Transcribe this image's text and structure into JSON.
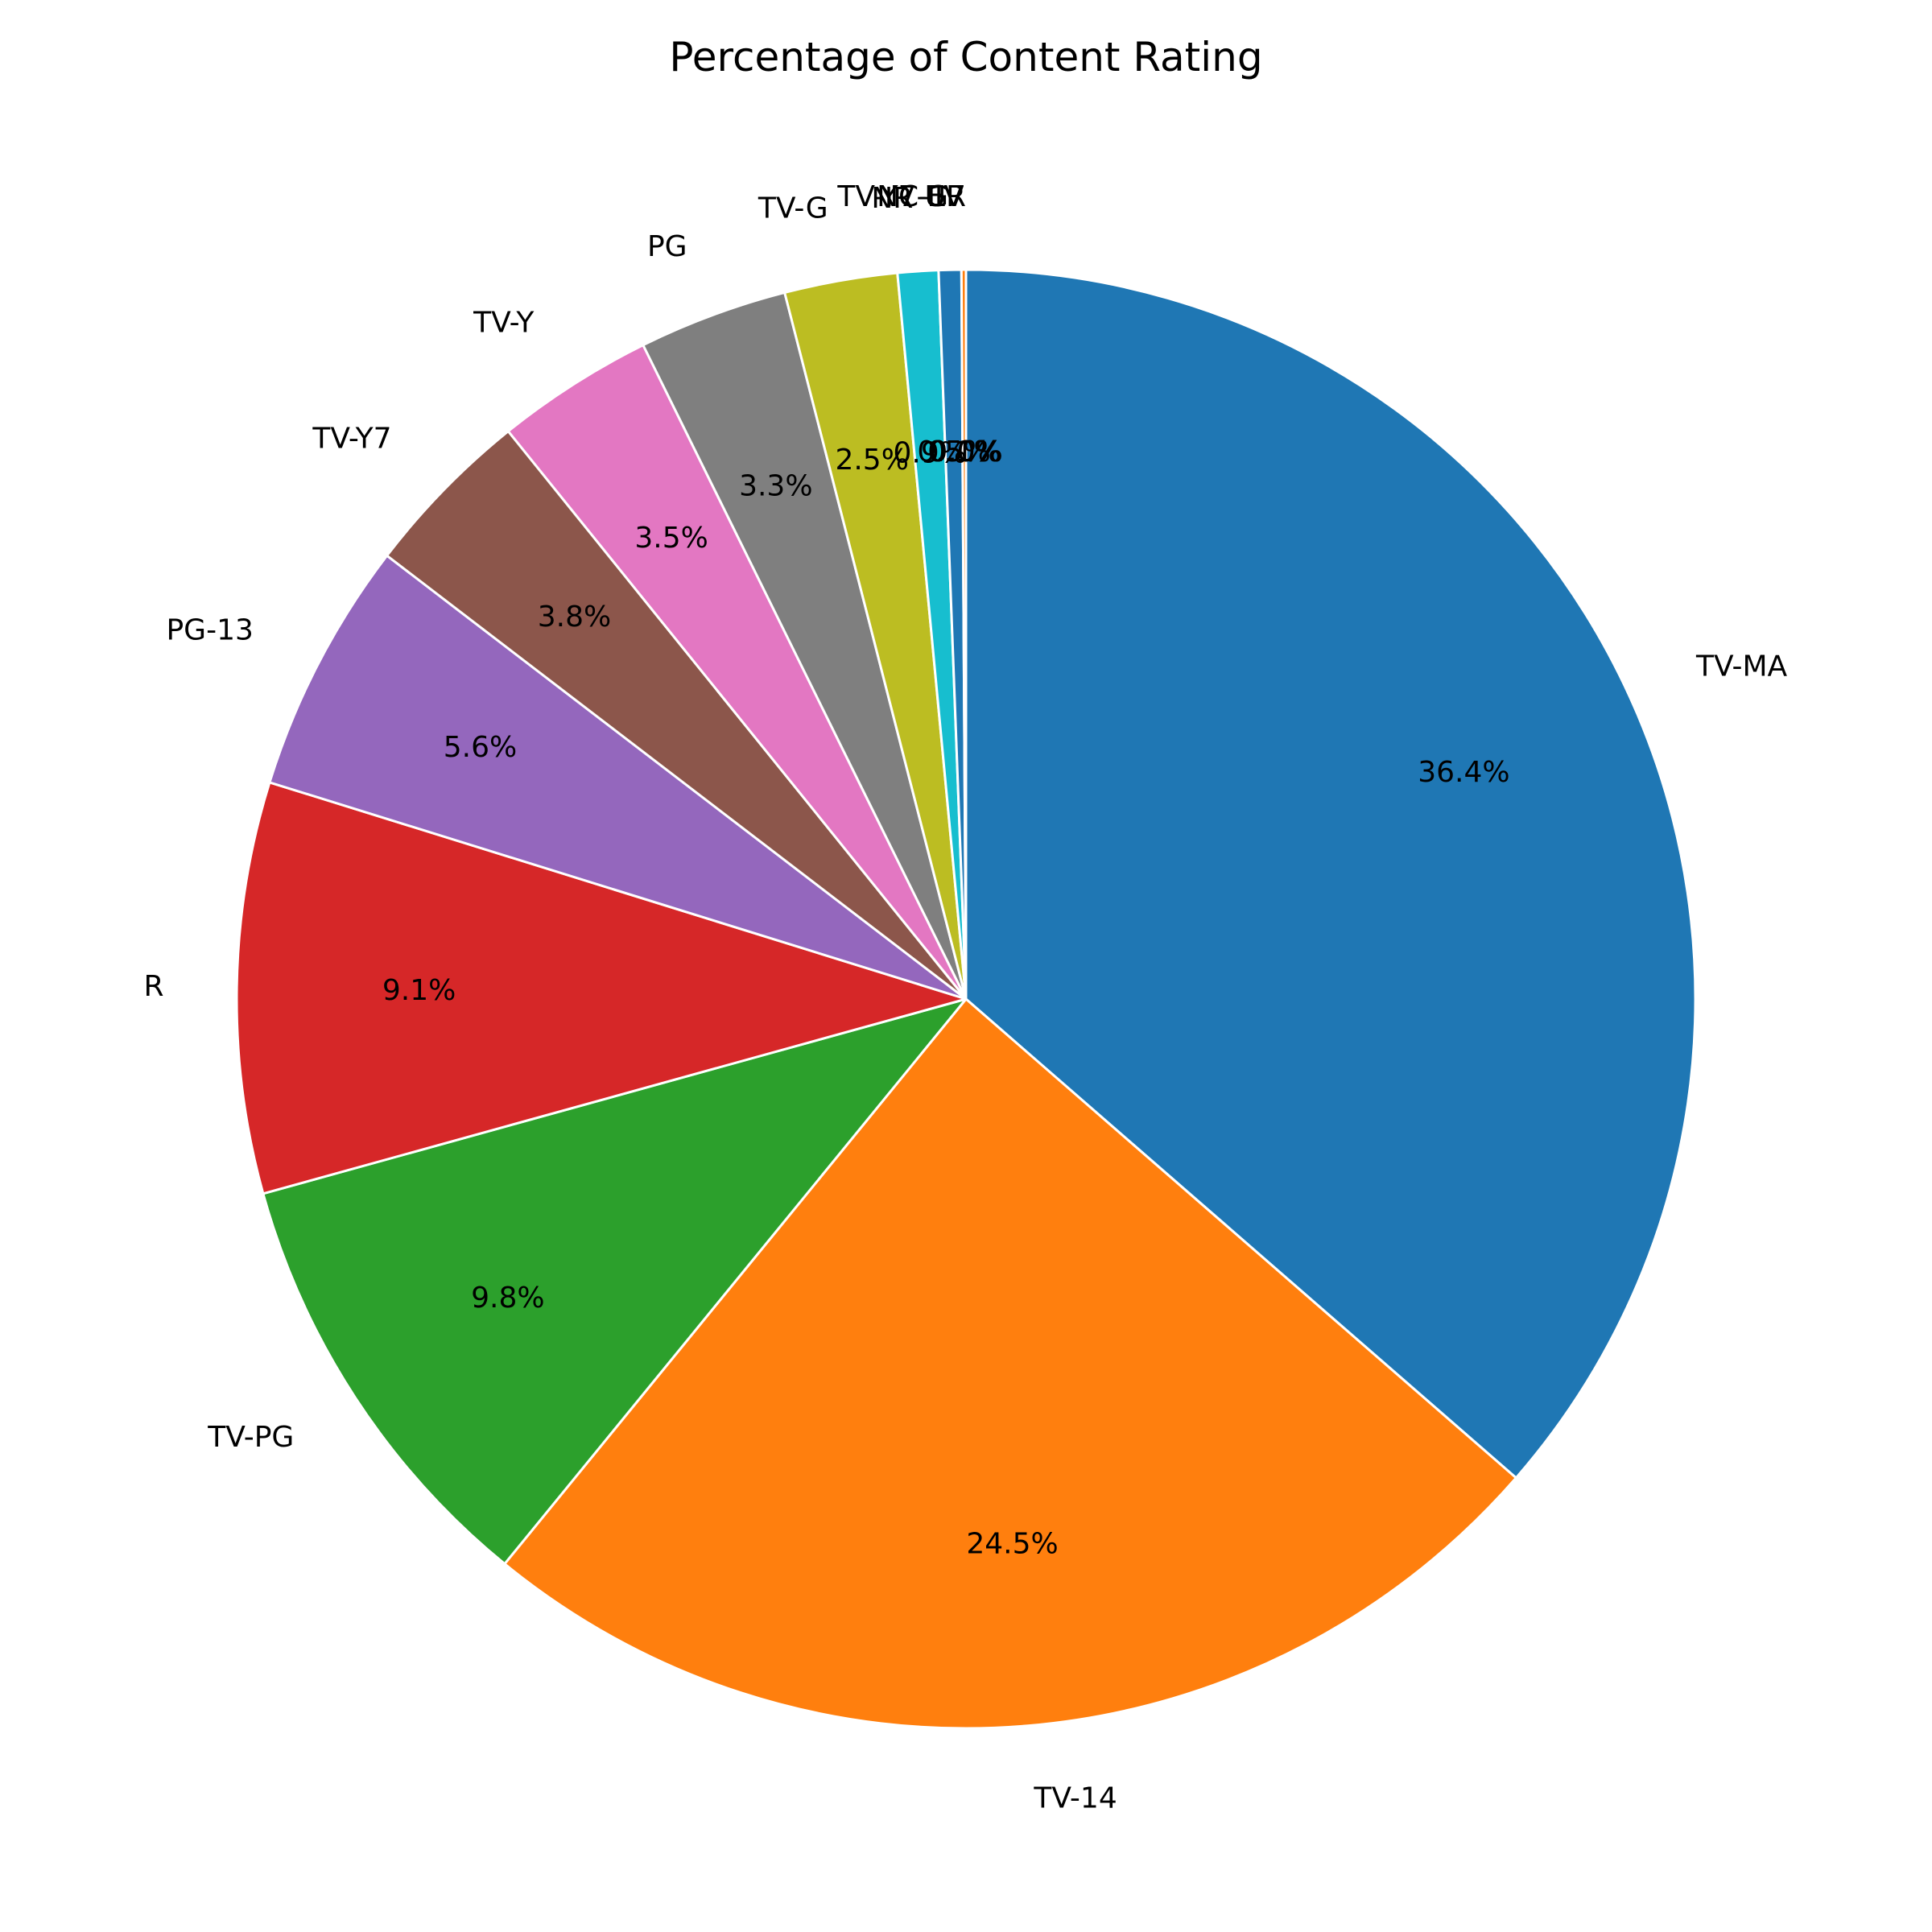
{
  "chart_data": {
    "type": "pie",
    "title": "Percentage of Content Rating",
    "start_angle_deg": 90,
    "direction": "clockwise",
    "categories": [
      "TV-MA",
      "TV-14",
      "TV-PG",
      "R",
      "PG-13",
      "TV-Y7",
      "TV-Y",
      "PG",
      "TV-G",
      "NR",
      "G",
      "TV-Y7-FV",
      "NC-17",
      "UR"
    ],
    "values": [
      36.4,
      24.5,
      9.8,
      9.1,
      5.6,
      3.8,
      3.5,
      3.3,
      2.5,
      0.9,
      0.5,
      0.1,
      0.0,
      0.0
    ],
    "value_labels": [
      "36.4%",
      "24.5%",
      "9.8%",
      "9.1%",
      "5.6%",
      "3.8%",
      "3.5%",
      "3.3%",
      "2.5%",
      "0.9%",
      "0.5%",
      "0.1%",
      "0.0%",
      "0.0%"
    ],
    "colors": [
      "#1f77b4",
      "#ff7f0e",
      "#2ca02c",
      "#d62728",
      "#9467bd",
      "#8c564b",
      "#e377c2",
      "#7f7f7f",
      "#bcbd22",
      "#17becf",
      "#1f77b4",
      "#ff7f0e",
      "#2ca02c",
      "#d62728"
    ],
    "edge_color": "#ffffff",
    "legend": "none"
  }
}
